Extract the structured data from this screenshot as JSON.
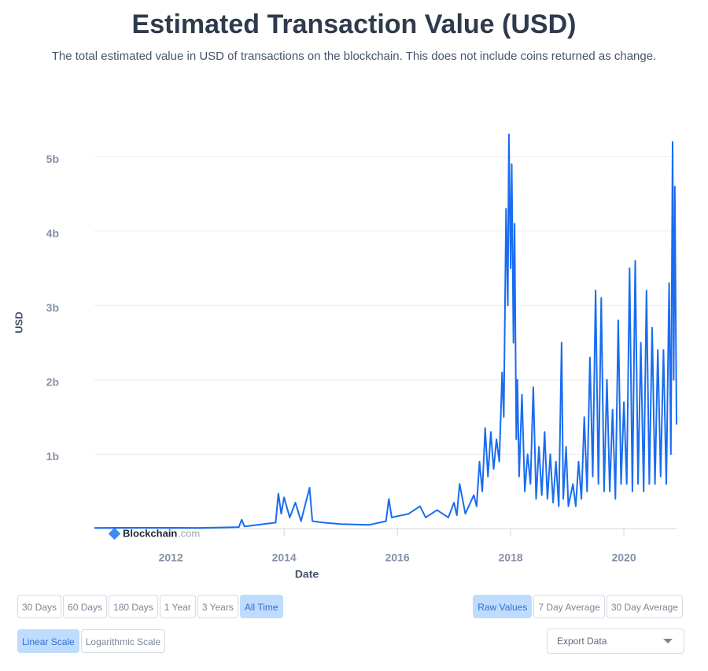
{
  "chart_data": {
    "type": "line",
    "title": "Estimated Transaction Value (USD)",
    "subtitle": "The total estimated value in USD of transactions on the blockchain. This does not include coins returned as change.",
    "x_label": "Date",
    "y_label": "USD",
    "watermark": [
      "Blockchain",
      ".com"
    ],
    "xlim": [
      2010.65,
      2020.93
    ],
    "xticks": [
      2012,
      2014,
      2016,
      2018,
      2020
    ],
    "ylim": [
      0,
      5530000000.0
    ],
    "yticks": [
      {
        "value": 1000000000.0,
        "label": "1b"
      },
      {
        "value": 2000000000.0,
        "label": "2b"
      },
      {
        "value": 3000000000.0,
        "label": "3b"
      },
      {
        "value": 4000000000.0,
        "label": "4b"
      },
      {
        "value": 5000000000.0,
        "label": "5b"
      }
    ],
    "grid": true,
    "series": [
      {
        "name": "Estimated Transaction Value",
        "color": "#1a6cf0",
        "x": [
          2010.65,
          2011.5,
          2012.5,
          2013.2,
          2013.25,
          2013.3,
          2013.85,
          2013.9,
          2013.95,
          2014.0,
          2014.1,
          2014.2,
          2014.3,
          2014.45,
          2014.5,
          2014.7,
          2015.0,
          2015.5,
          2015.8,
          2015.85,
          2015.9,
          2016.2,
          2016.4,
          2016.5,
          2016.7,
          2016.9,
          2017.0,
          2017.05,
          2017.1,
          2017.2,
          2017.35,
          2017.4,
          2017.45,
          2017.5,
          2017.55,
          2017.6,
          2017.65,
          2017.7,
          2017.75,
          2017.8,
          2017.85,
          2017.88,
          2017.92,
          2017.95,
          2017.97,
          2018.0,
          2018.02,
          2018.05,
          2018.07,
          2018.1,
          2018.12,
          2018.15,
          2018.2,
          2018.25,
          2018.3,
          2018.35,
          2018.4,
          2018.45,
          2018.5,
          2018.55,
          2018.6,
          2018.65,
          2018.7,
          2018.75,
          2018.8,
          2018.85,
          2018.9,
          2018.93,
          2018.98,
          2019.02,
          2019.1,
          2019.15,
          2019.2,
          2019.25,
          2019.3,
          2019.35,
          2019.4,
          2019.45,
          2019.5,
          2019.55,
          2019.6,
          2019.65,
          2019.7,
          2019.75,
          2019.8,
          2019.85,
          2019.9,
          2019.95,
          2020.0,
          2020.05,
          2020.1,
          2020.15,
          2020.2,
          2020.25,
          2020.3,
          2020.35,
          2020.4,
          2020.45,
          2020.5,
          2020.55,
          2020.6,
          2020.65,
          2020.7,
          2020.75,
          2020.8,
          2020.83,
          2020.86,
          2020.88,
          2020.9,
          2020.93
        ],
        "values": [
          10000000.0,
          12000000.0,
          10000000.0,
          20000000.0,
          120000000.0,
          30000000.0,
          80000000.0,
          470000000.0,
          200000000.0,
          420000000.0,
          150000000.0,
          350000000.0,
          100000000.0,
          550000000.0,
          100000000.0,
          80000000.0,
          60000000.0,
          50000000.0,
          100000000.0,
          400000000.0,
          150000000.0,
          200000000.0,
          300000000.0,
          150000000.0,
          250000000.0,
          150000000.0,
          350000000.0,
          180000000.0,
          600000000.0,
          200000000.0,
          450000000.0,
          300000000.0,
          900000000.0,
          500000000.0,
          1350000000.0,
          700000000.0,
          1300000000.0,
          800000000.0,
          1200000000.0,
          900000000.0,
          2100000000.0,
          1500000000.0,
          4300000000.0,
          3000000000.0,
          5300000000.0,
          3500000000.0,
          4900000000.0,
          2500000000.0,
          4100000000.0,
          1200000000.0,
          2000000000.0,
          700000000.0,
          1800000000.0,
          500000000.0,
          1000000000.0,
          600000000.0,
          1900000000.0,
          400000000.0,
          1100000000.0,
          450000000.0,
          1300000000.0,
          400000000.0,
          1000000000.0,
          350000000.0,
          900000000.0,
          300000000.0,
          2500000000.0,
          400000000.0,
          1100000000.0,
          300000000.0,
          600000000.0,
          300000000.0,
          900000000.0,
          400000000.0,
          1500000000.0,
          500000000.0,
          2300000000.0,
          700000000.0,
          3200000000.0,
          600000000.0,
          3100000000.0,
          500000000.0,
          2000000000.0,
          500000000.0,
          1600000000.0,
          400000000.0,
          2800000000.0,
          600000000.0,
          1700000000.0,
          600000000.0,
          3500000000.0,
          500000000.0,
          3600000000.0,
          600000000.0,
          2500000000.0,
          500000000.0,
          3200000000.0,
          600000000.0,
          2700000000.0,
          600000000.0,
          2400000000.0,
          700000000.0,
          2400000000.0,
          600000000.0,
          3300000000.0,
          1000000000.0,
          5200000000.0,
          2000000000.0,
          4600000000.0,
          1400000000.0
        ]
      }
    ]
  },
  "time_buttons": [
    "30 Days",
    "60 Days",
    "180 Days",
    "1 Year",
    "3 Years",
    "All Time"
  ],
  "time_selected": 5,
  "mode_buttons": [
    "Raw Values",
    "7 Day Average",
    "30 Day Average"
  ],
  "mode_selected": 0,
  "scale_buttons": [
    "Linear Scale",
    "Logarithmic Scale"
  ],
  "scale_selected": 0,
  "export": "Export Data"
}
